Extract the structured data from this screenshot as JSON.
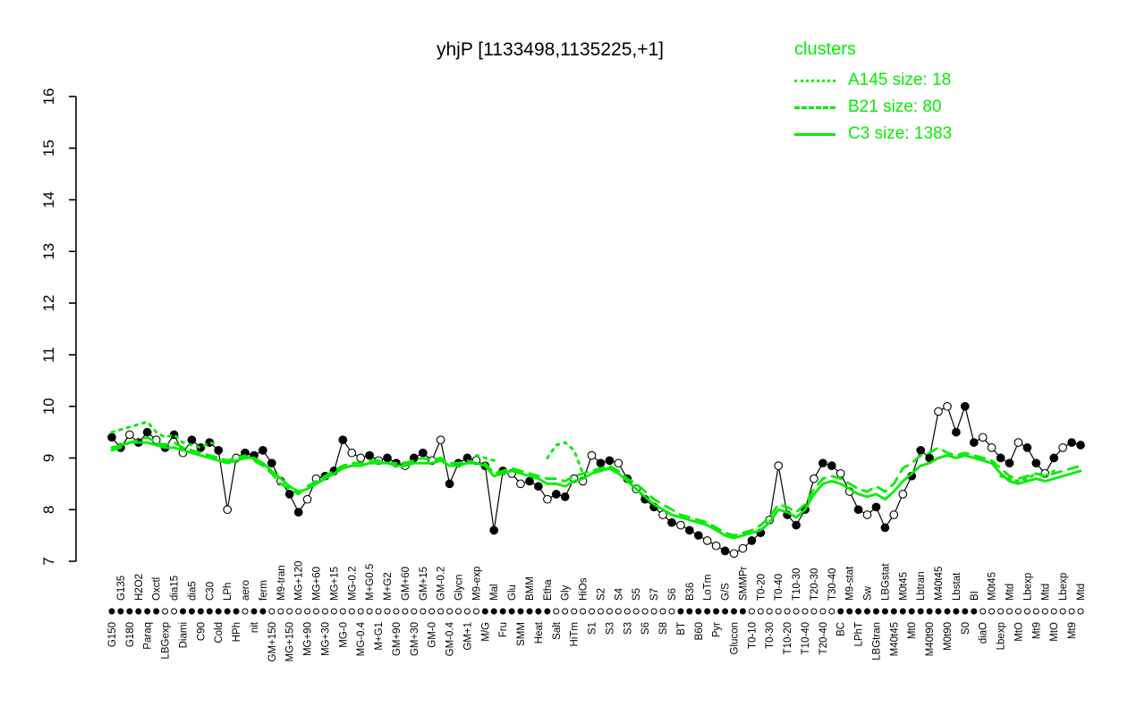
{
  "title": "yhjP [1133498,1135225,+1]",
  "legend": {
    "title": "clusters",
    "entries": [
      {
        "label": "A145 size: 18",
        "style": "dotted"
      },
      {
        "label": "B21 size: 80",
        "style": "dashed"
      },
      {
        "label": "C3 size: 1383",
        "style": "solid"
      }
    ]
  },
  "colors": {
    "cluster": "#00EE00",
    "profile": "#000000",
    "background": "#FFFFFF"
  },
  "chart_data": {
    "type": "line",
    "title": "yhjP [1133498,1135225,+1]",
    "xlabel": "",
    "ylabel": "",
    "ylim": [
      7,
      16
    ],
    "yticks": [
      7,
      8,
      9,
      10,
      11,
      12,
      13,
      14,
      15,
      16
    ],
    "grid": false,
    "legend_position": "top-right",
    "label_alternation": "even-bottom",
    "categories": [
      "G150",
      "G135",
      "G180",
      "H2O2",
      "Paraq",
      "Oxctl",
      "LBGexp",
      "dia15",
      "Diami",
      "dia5",
      "C90",
      "C30",
      "Cold",
      "LPh",
      "HPh",
      "aero",
      "nit",
      "ferm",
      "GM+150",
      "M9-tran",
      "MG+150",
      "MG+120",
      "MG+90",
      "MG+60",
      "MG+30",
      "MG+15",
      "MG-0",
      "MG-0.2",
      "MG-0.4",
      "M+G0.5",
      "M+G1",
      "M+G2",
      "GM+90",
      "GM+60",
      "GM+30",
      "GM+15",
      "GM-0",
      "GM-0.2",
      "GM-0.4",
      "Glycn",
      "GM+1",
      "M9-exp",
      "M/G",
      "Mal",
      "Fru",
      "Glu",
      "SMM",
      "BMM",
      "Heat",
      "Etha",
      "Salt",
      "Gly",
      "HiTm",
      "HiOs",
      "S1",
      "S2",
      "S3",
      "S4",
      "S3",
      "S5",
      "S6",
      "S7",
      "S8",
      "S6",
      "BT",
      "B36",
      "B60",
      "LoTm",
      "Pyr",
      "G/S",
      "Glucon",
      "SMMPr",
      "T0-10",
      "T0-20",
      "T0-30",
      "T0-40",
      "T10-20",
      "T10-30",
      "T10-40",
      "T20-30",
      "T20-40",
      "T30-40",
      "BC",
      "M9-stat",
      "LPhT",
      "Sw",
      "LBGtran",
      "LBGstat",
      "M40t45",
      "M0t45",
      "Mt0",
      "Lbtran",
      "M40t90",
      "M40t45",
      "M0t90",
      "Lbstat",
      "S0",
      "BI",
      "diaO",
      "M0t45",
      "Lbexp",
      "Mtd",
      "MtO",
      "Lbexp",
      "Mt9",
      "Mtd",
      "MtO",
      "Lbexp",
      "Mt9",
      "Mtd"
    ],
    "strip_dots": [
      "ffffffoofffffffoff",
      "oooooooooooooooooooooooo",
      "ffffffff",
      "oooooooooooooo",
      "ffffffff",
      "oooooooooo",
      "ffffffffffffffff",
      "oooooooooooo"
    ],
    "series": [
      {
        "name": "gene-profile",
        "color": "#000000",
        "line": "solid",
        "width": 1.2,
        "marker": "circle",
        "marker_fill": [
          "ffoffoffof",
          "fffooffffo",
          "ffoofffoof",
          "offoffooff",
          "fofffooffo",
          "ffoooffofo",
          "ffofoffoof",
          "ooffoofffo",
          "ffoofoffoo",
          "fffoofffoo",
          "ffoffofoff"
        ],
        "values": [
          9.4,
          9.2,
          9.45,
          9.3,
          9.5,
          9.35,
          9.2,
          9.45,
          9.1,
          9.35,
          9.2,
          9.3,
          9.15,
          8.0,
          9.0,
          9.1,
          9.05,
          9.15,
          8.9,
          8.55,
          8.3,
          7.95,
          8.2,
          8.6,
          8.65,
          8.75,
          9.35,
          9.1,
          9.0,
          9.05,
          8.95,
          9.0,
          8.9,
          8.85,
          9.0,
          9.1,
          8.95,
          9.35,
          8.5,
          8.9,
          9.0,
          8.95,
          8.85,
          7.6,
          8.75,
          8.7,
          8.5,
          8.55,
          8.45,
          8.2,
          8.3,
          8.25,
          8.6,
          8.55,
          9.05,
          8.9,
          8.95,
          8.9,
          8.6,
          8.4,
          8.2,
          8.05,
          7.9,
          7.75,
          7.7,
          7.6,
          7.5,
          7.4,
          7.3,
          7.2,
          7.15,
          7.25,
          7.4,
          7.55,
          7.8,
          8.85,
          7.9,
          7.7,
          8.0,
          8.6,
          8.9,
          8.85,
          8.7,
          8.35,
          8.0,
          7.9,
          8.05,
          7.65,
          7.9,
          8.3,
          8.65,
          9.15,
          9.0,
          9.9,
          10.0,
          9.5,
          10.0,
          9.3,
          9.4,
          9.2,
          9.0,
          8.9,
          9.3,
          9.2,
          8.9,
          8.7,
          9.0,
          9.2,
          9.3,
          9.25
        ]
      },
      {
        "name": "A145",
        "color": "#00EE00",
        "line": "dotted",
        "width": 3,
        "marker": null,
        "values": [
          9.5,
          9.55,
          9.6,
          9.65,
          9.7,
          9.5,
          9.4,
          9.45,
          9.3,
          9.25,
          9.2,
          9.3,
          9.25,
          null,
          null,
          null,
          null,
          null,
          null,
          null,
          null,
          null,
          null,
          null,
          null,
          null,
          null,
          null,
          null,
          null,
          null,
          null,
          null,
          null,
          null,
          null,
          null,
          null,
          null,
          null,
          null,
          9.05,
          9.0,
          8.95,
          null,
          null,
          null,
          null,
          null,
          9.0,
          9.25,
          9.3,
          9.15,
          8.7,
          null,
          null,
          null,
          null,
          null,
          null,
          null,
          null,
          null,
          null,
          null,
          null,
          null,
          null,
          null,
          null,
          null,
          null,
          null,
          null,
          null,
          null,
          null,
          null,
          null,
          null,
          null,
          null,
          null,
          null,
          null,
          null,
          null,
          null,
          null,
          null,
          null,
          null,
          null,
          null,
          null,
          null,
          null,
          null,
          null,
          null,
          8.65,
          8.6,
          8.55,
          8.6,
          8.7,
          8.65,
          8.75,
          null,
          null,
          null
        ]
      },
      {
        "name": "B21",
        "color": "#00EE00",
        "line": "dashed",
        "width": 2.8,
        "marker": null,
        "values": [
          9.15,
          9.2,
          9.3,
          9.35,
          9.4,
          9.3,
          9.25,
          9.3,
          9.2,
          9.15,
          9.1,
          9.05,
          9.0,
          8.95,
          9.0,
          9.05,
          8.95,
          8.85,
          8.7,
          8.5,
          8.4,
          8.3,
          8.45,
          8.55,
          8.65,
          8.75,
          8.85,
          8.9,
          8.9,
          8.95,
          8.95,
          8.9,
          8.9,
          8.9,
          8.95,
          9.0,
          8.95,
          9.0,
          8.9,
          8.9,
          8.95,
          8.9,
          8.9,
          8.7,
          8.75,
          8.8,
          8.75,
          8.7,
          8.65,
          8.6,
          8.6,
          8.55,
          8.65,
          8.7,
          8.75,
          8.8,
          8.85,
          8.75,
          8.6,
          8.5,
          8.35,
          8.2,
          8.1,
          8.0,
          7.9,
          7.85,
          7.8,
          7.75,
          7.65,
          7.55,
          7.5,
          7.55,
          7.6,
          7.7,
          7.85,
          8.1,
          8.05,
          7.95,
          8.1,
          8.4,
          8.6,
          8.65,
          8.6,
          8.5,
          8.4,
          8.35,
          8.45,
          8.35,
          8.5,
          8.8,
          8.9,
          9.05,
          9.1,
          9.2,
          9.1,
          9.05,
          9.1,
          9.05,
          9.0,
          8.95,
          8.8,
          8.65,
          8.6,
          8.65,
          8.7,
          8.65,
          8.7,
          8.75,
          8.8,
          8.85
        ]
      },
      {
        "name": "C3",
        "color": "#00EE00",
        "line": "solid",
        "width": 2.8,
        "marker": null,
        "values": [
          9.2,
          9.25,
          9.3,
          9.3,
          9.3,
          9.25,
          9.2,
          9.2,
          9.15,
          9.1,
          9.05,
          9.0,
          8.95,
          8.9,
          8.95,
          9.0,
          9.0,
          8.9,
          8.75,
          8.6,
          8.45,
          8.35,
          8.4,
          8.5,
          8.6,
          8.7,
          8.8,
          8.85,
          8.85,
          8.9,
          8.9,
          8.9,
          8.85,
          8.85,
          8.9,
          8.9,
          8.9,
          8.95,
          8.85,
          8.85,
          8.9,
          8.9,
          8.85,
          8.65,
          8.7,
          8.75,
          8.7,
          8.65,
          8.6,
          8.5,
          8.5,
          8.45,
          8.55,
          8.6,
          8.7,
          8.75,
          8.8,
          8.7,
          8.55,
          8.4,
          8.25,
          8.1,
          8.0,
          7.9,
          7.85,
          7.8,
          7.75,
          7.7,
          7.6,
          7.5,
          7.45,
          7.5,
          7.55,
          7.6,
          7.75,
          8.0,
          7.95,
          7.85,
          8.0,
          8.3,
          8.5,
          8.55,
          8.5,
          8.4,
          8.3,
          8.25,
          8.3,
          8.2,
          8.35,
          8.55,
          8.7,
          8.85,
          8.9,
          9.0,
          9.05,
          9.0,
          9.05,
          9.0,
          8.95,
          8.9,
          8.7,
          8.55,
          8.5,
          8.55,
          8.6,
          8.55,
          8.6,
          8.65,
          8.7,
          8.75
        ]
      }
    ]
  }
}
